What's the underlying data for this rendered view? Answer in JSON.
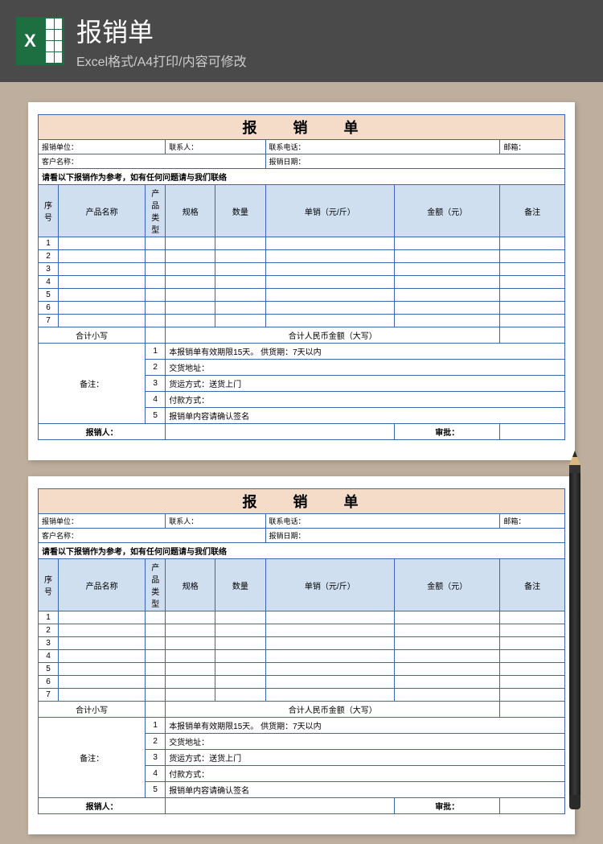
{
  "header": {
    "title": "报销单",
    "subtitle": "Excel格式/A4打印/内容可修改"
  },
  "form": {
    "type": "table",
    "background_color": "#ffffff",
    "border_color": "#3a66b5",
    "title_bg": "#f5dcc9",
    "header_bg": "#d0dff0",
    "title": "报 销 单",
    "info1": {
      "unit_label": "报销单位：",
      "contact_label": "联系人：",
      "phone_label": "联系电话：",
      "email_label": "邮箱："
    },
    "info2": {
      "customer_label": "客户名称：",
      "date_label": "报销日期："
    },
    "notice": "请看以下报销作为参考，如有任何问题请与我们联络",
    "columns": [
      "序号",
      "产品名称",
      "产品类型",
      "规格",
      "数量",
      "单销（元/斤）",
      "金额（元）",
      "备注"
    ],
    "row_count": 7,
    "subtotal_label": "合计小写",
    "subtotal_cn_label": "合计人民币金额（大写）",
    "remark_label": "备注：",
    "remarks": [
      "本报销单有效期限15天。     供货期：7天以内",
      "交货地址：",
      "货运方式：送货上门",
      "付款方式：",
      "报销单内容请确认签名"
    ],
    "footer": {
      "person_label": "报销人：",
      "approve_label": "审批："
    }
  },
  "style": {
    "page_bg": "#bdae9d",
    "header_bg": "#4a4a4a",
    "excel_green": "#1d6f42"
  }
}
